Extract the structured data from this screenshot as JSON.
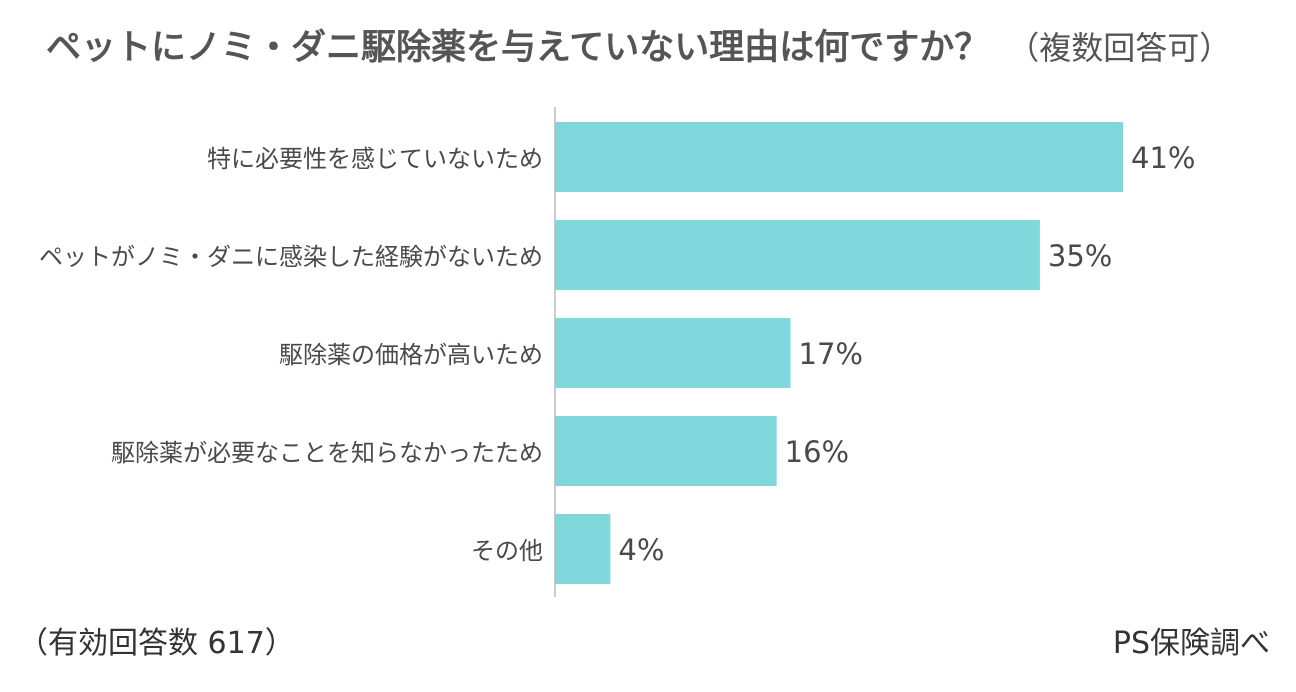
{
  "title": {
    "main": "ペットにノミ・ダニ駆除薬を与えていない理由は何ですか？",
    "sub": "（複数回答可）"
  },
  "chart_data": {
    "type": "bar",
    "orientation": "horizontal",
    "categories": [
      "特に必要性を感じていないため",
      "ペットがノミ・ダニに感染した経験がないため",
      "駆除薬の価格が高いため",
      "駆除薬が必要なことを知らなかったため",
      "その他"
    ],
    "values": [
      41,
      35,
      17,
      16,
      4
    ],
    "value_labels": [
      "41%",
      "35%",
      "17%",
      "16%",
      "4%"
    ],
    "unit": "%",
    "xlim": [
      0,
      50
    ],
    "bar_color": "#80d8dc",
    "axis_color": "#bbbbbb",
    "grid": false
  },
  "footer": {
    "respondents": "（有効回答数 617）",
    "source": "PS保険調べ"
  }
}
